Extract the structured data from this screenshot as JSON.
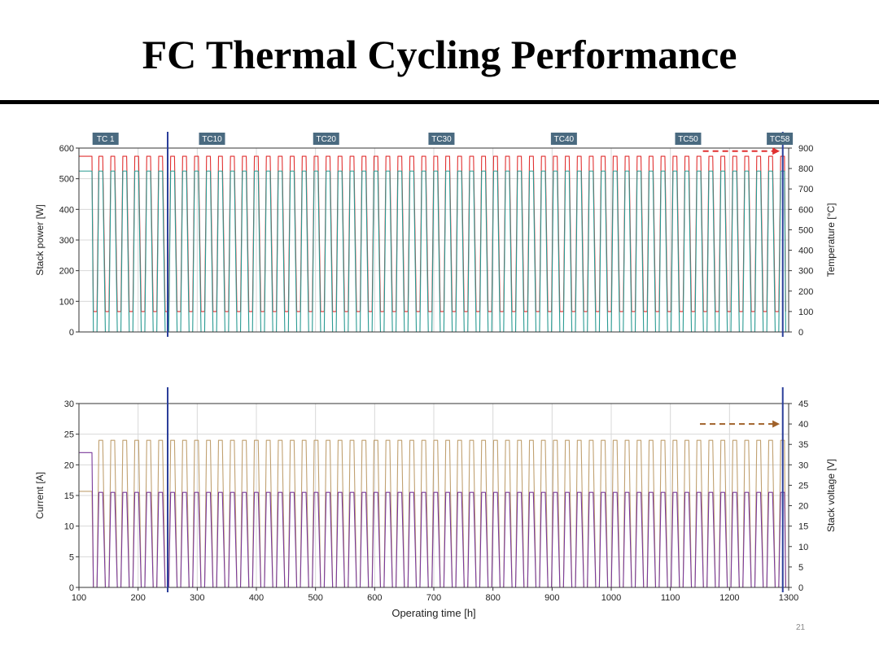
{
  "slide": {
    "title": "FC Thermal Cycling Performance",
    "page_number": "21"
  },
  "chart_data": [
    {
      "type": "line",
      "x_range": [
        100,
        1300
      ],
      "y_left": {
        "label": "Stack power [W]",
        "range": [
          0,
          600
        ],
        "ticks": [
          0,
          100,
          200,
          300,
          400,
          500,
          600
        ]
      },
      "y_right": {
        "label": "Temperature [°C]",
        "range": [
          0,
          900
        ],
        "ticks": [
          0,
          100,
          200,
          300,
          400,
          500,
          600,
          700,
          800,
          900
        ]
      },
      "cycle_labels": [
        {
          "label": "TC 1",
          "x": 145
        },
        {
          "label": "TC10",
          "x": 325
        },
        {
          "label": "TC20",
          "x": 518
        },
        {
          "label": "TC30",
          "x": 713
        },
        {
          "label": "TC40",
          "x": 920
        },
        {
          "label": "TC50",
          "x": 1130
        },
        {
          "label": "TC58",
          "x": 1285
        }
      ],
      "markers_x": [
        250,
        1290
      ],
      "series": [
        {
          "axis": "right",
          "color": "#e03030",
          "cycles": 58,
          "start_x": 122,
          "end_x": 1295,
          "initial": 860,
          "high": 860,
          "low": 100
        },
        {
          "axis": "left",
          "color": "#2a9a92",
          "cycles": 58,
          "start_x": 122,
          "end_x": 1295,
          "initial": 525,
          "high": 525,
          "low": 0
        }
      ],
      "annotation_arrow": {
        "from_x": 1155,
        "to_x": 1285,
        "y": 885,
        "axis": "right",
        "color": "#e03030"
      }
    },
    {
      "type": "line",
      "x_range": [
        100,
        1300
      ],
      "xlabel": "Operating time [h]",
      "x_ticks": [
        100,
        200,
        300,
        400,
        500,
        600,
        700,
        800,
        900,
        1000,
        1100,
        1200,
        1300
      ],
      "y_left": {
        "label": "Current [A]",
        "range": [
          0,
          30
        ],
        "ticks": [
          0,
          5,
          10,
          15,
          20,
          25,
          30
        ]
      },
      "y_right": {
        "label": "Stack voltage [V]",
        "range": [
          0,
          45
        ],
        "ticks": [
          0,
          5,
          10,
          15,
          20,
          25,
          30,
          35,
          40,
          45
        ]
      },
      "markers_x": [
        250,
        1290
      ],
      "series": [
        {
          "axis": "right",
          "color": "#c0a070",
          "cycles": 58,
          "start_x": 122,
          "end_x": 1295,
          "initial": 23.5,
          "high": 36,
          "low": 0
        },
        {
          "axis": "left",
          "color": "#7a3a9a",
          "cycles": 58,
          "start_x": 122,
          "end_x": 1295,
          "initial": 22,
          "high": 15.5,
          "low": 0
        }
      ],
      "annotation_arrow": {
        "from_x": 1150,
        "to_x": 1285,
        "y": 40,
        "axis": "right",
        "color": "#a0622a"
      }
    }
  ]
}
